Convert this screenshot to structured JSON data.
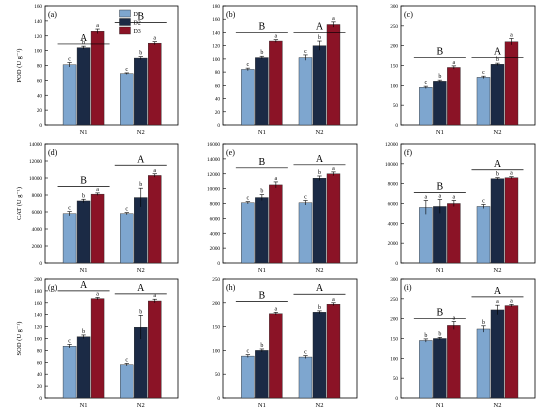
{
  "colors": {
    "D1": "#7ea6cf",
    "D2": "#1b2a45",
    "D3": "#8b1326"
  },
  "chart_data": [
    {
      "panel_label": "(a)",
      "type": "bar",
      "categories": [
        "N1",
        "N2"
      ],
      "ylabel": "POD (U g⁻¹)",
      "ylim": [
        0,
        160
      ],
      "yticks": [
        0,
        20,
        40,
        60,
        80,
        100,
        120,
        140,
        160
      ],
      "legend": [
        "D1",
        "D2",
        "D3"
      ],
      "series": [
        {
          "name": "D1",
          "values": [
            81,
            69
          ],
          "errors": [
            3,
            1
          ],
          "letters": [
            "c",
            "c"
          ]
        },
        {
          "name": "D2",
          "values": [
            104,
            90
          ],
          "errors": [
            2,
            2
          ],
          "letters": [
            "b",
            "b"
          ]
        },
        {
          "name": "D3",
          "values": [
            126,
            110
          ],
          "errors": [
            3,
            2
          ],
          "letters": [
            "a",
            "a"
          ]
        }
      ],
      "group_letters": [
        "A",
        "B"
      ],
      "group_lines": [
        [
          109,
          138
        ],
        [
          138,
          124
        ]
      ]
    },
    {
      "panel_label": "(b)",
      "type": "bar",
      "categories": [
        "N1",
        "N2"
      ],
      "ylabel": "",
      "ylim": [
        0,
        180
      ],
      "yticks": [
        0,
        20,
        40,
        60,
        80,
        100,
        120,
        140,
        160,
        180
      ],
      "series": [
        {
          "name": "D1",
          "values": [
            84,
            102
          ],
          "errors": [
            2,
            4
          ],
          "letters": [
            "c",
            "c"
          ]
        },
        {
          "name": "D2",
          "values": [
            102,
            120
          ],
          "errors": [
            2,
            7
          ],
          "letters": [
            "b",
            "b"
          ]
        },
        {
          "name": "D3",
          "values": [
            127,
            152
          ],
          "errors": [
            2,
            4
          ],
          "letters": [
            "a",
            "a"
          ]
        }
      ],
      "group_letters": [
        "B",
        "A"
      ],
      "group_lines": [
        [
          140,
          158
        ],
        [
          140,
          158
        ]
      ]
    },
    {
      "panel_label": "(c)",
      "type": "bar",
      "categories": [
        "N1",
        "N2"
      ],
      "ylabel": "",
      "ylim": [
        0,
        300
      ],
      "yticks": [
        0,
        50,
        100,
        150,
        200,
        250,
        300
      ],
      "series": [
        {
          "name": "D1",
          "values": [
            95,
            120
          ],
          "errors": [
            3,
            3
          ],
          "letters": [
            "c",
            "c"
          ]
        },
        {
          "name": "D2",
          "values": [
            110,
            153
          ],
          "errors": [
            3,
            3
          ],
          "letters": [
            "b",
            "b"
          ]
        },
        {
          "name": "D3",
          "values": [
            145,
            210
          ],
          "errors": [
            4,
            8
          ],
          "letters": [
            "a",
            "a"
          ]
        }
      ],
      "group_letters": [
        "B",
        "A"
      ],
      "group_lines": [
        [
          170,
          175
        ],
        [
          170,
          265
        ]
      ]
    },
    {
      "panel_label": "(d)",
      "type": "bar",
      "categories": [
        "N1",
        "N2"
      ],
      "ylabel": "CAT (U g⁻¹)",
      "ylim": [
        0,
        14000
      ],
      "yticks": [
        0,
        2000,
        4000,
        6000,
        8000,
        10000,
        12000,
        14000
      ],
      "series": [
        {
          "name": "D1",
          "values": [
            5800,
            5800
          ],
          "errors": [
            250,
            120
          ],
          "letters": [
            "c",
            "c"
          ]
        },
        {
          "name": "D2",
          "values": [
            7300,
            7700
          ],
          "errors": [
            200,
            1100
          ],
          "letters": [
            "b",
            "b"
          ]
        },
        {
          "name": "D3",
          "values": [
            8100,
            10300
          ],
          "errors": [
            150,
            200
          ],
          "letters": [
            "a",
            "a"
          ]
        }
      ],
      "group_letters": [
        "B",
        "A"
      ],
      "group_lines": [
        [
          9000,
          9000
        ],
        [
          11500,
          11500
        ]
      ]
    },
    {
      "panel_label": "(e)",
      "type": "bar",
      "categories": [
        "N1",
        "N2"
      ],
      "ylabel": "",
      "ylim": [
        0,
        16000
      ],
      "yticks": [
        0,
        2000,
        4000,
        6000,
        8000,
        10000,
        12000,
        14000,
        16000
      ],
      "series": [
        {
          "name": "D1",
          "values": [
            8100,
            8100
          ],
          "errors": [
            150,
            300
          ],
          "letters": [
            "c",
            "c"
          ]
        },
        {
          "name": "D2",
          "values": [
            8800,
            11400
          ],
          "errors": [
            400,
            300
          ],
          "letters": [
            "b",
            "b"
          ]
        },
        {
          "name": "D3",
          "values": [
            10500,
            12000
          ],
          "errors": [
            400,
            250
          ],
          "letters": [
            "a",
            "a"
          ]
        }
      ],
      "group_letters": [
        "B",
        "A"
      ],
      "group_lines": [
        [
          12800,
          12800
        ],
        [
          13200,
          13200
        ]
      ]
    },
    {
      "panel_label": "(f)",
      "type": "bar",
      "categories": [
        "N1",
        "N2"
      ],
      "ylabel": "",
      "ylim": [
        0,
        12000
      ],
      "yticks": [
        0,
        2000,
        4000,
        6000,
        8000,
        10000,
        12000
      ],
      "series": [
        {
          "name": "D1",
          "values": [
            5600,
            5700
          ],
          "errors": [
            700,
            200
          ],
          "letters": [
            "a",
            "c"
          ]
        },
        {
          "name": "D2",
          "values": [
            5700,
            8500
          ],
          "errors": [
            700,
            100
          ],
          "letters": [
            "a",
            "b"
          ]
        },
        {
          "name": "D3",
          "values": [
            6000,
            8600
          ],
          "errors": [
            300,
            100
          ],
          "letters": [
            "a",
            "a"
          ]
        }
      ],
      "group_letters": [
        "B",
        "A"
      ],
      "group_lines": [
        [
          7100,
          7100
        ],
        [
          9400,
          9400
        ]
      ]
    },
    {
      "panel_label": "(g)",
      "type": "bar",
      "categories": [
        "N1",
        "N2"
      ],
      "ylabel": "SOD (U g⁻¹)",
      "ylim": [
        0,
        200
      ],
      "yticks": [
        0,
        20,
        40,
        60,
        80,
        100,
        120,
        140,
        160,
        180,
        200
      ],
      "series": [
        {
          "name": "D1",
          "values": [
            87,
            56
          ],
          "errors": [
            3,
            2
          ],
          "letters": [
            "c",
            "c"
          ]
        },
        {
          "name": "D2",
          "values": [
            103,
            119
          ],
          "errors": [
            3,
            20
          ],
          "letters": [
            "b",
            "b"
          ]
        },
        {
          "name": "D3",
          "values": [
            167,
            163
          ],
          "errors": [
            2,
            3
          ],
          "letters": [
            "a",
            "a"
          ]
        }
      ],
      "group_letters": [
        "A",
        "A"
      ],
      "group_lines": [
        [
          180,
          180
        ],
        [
          175,
          175
        ]
      ]
    },
    {
      "panel_label": "(h)",
      "type": "bar",
      "categories": [
        "N1",
        "N2"
      ],
      "ylabel": "",
      "ylim": [
        0,
        250
      ],
      "yticks": [
        0,
        50,
        100,
        150,
        200,
        250
      ],
      "series": [
        {
          "name": "D1",
          "values": [
            88,
            86
          ],
          "errors": [
            3,
            3
          ],
          "letters": [
            "c",
            "c"
          ]
        },
        {
          "name": "D2",
          "values": [
            100,
            180
          ],
          "errors": [
            3,
            3
          ],
          "letters": [
            "b",
            "b"
          ]
        },
        {
          "name": "D3",
          "values": [
            177,
            197
          ],
          "errors": [
            3,
            3
          ],
          "letters": [
            "a",
            "a"
          ]
        }
      ],
      "group_letters": [
        "B",
        "A"
      ],
      "group_lines": [
        [
          203,
          203
        ],
        [
          218,
          218
        ]
      ]
    },
    {
      "panel_label": "(i)",
      "type": "bar",
      "categories": [
        "N1",
        "N2"
      ],
      "ylabel": "",
      "ylim": [
        0,
        300
      ],
      "yticks": [
        0,
        50,
        100,
        150,
        200,
        250,
        300
      ],
      "series": [
        {
          "name": "D1",
          "values": [
            145,
            174
          ],
          "errors": [
            4,
            8
          ],
          "letters": [
            "b",
            "b"
          ]
        },
        {
          "name": "D2",
          "values": [
            150,
            222
          ],
          "errors": [
            3,
            12
          ],
          "letters": [
            "b",
            "a"
          ]
        },
        {
          "name": "D3",
          "values": [
            183,
            233
          ],
          "errors": [
            10,
            3
          ],
          "letters": [
            "a",
            "a"
          ]
        }
      ],
      "group_letters": [
        "B",
        "A"
      ],
      "group_lines": [
        [
          200,
          200
        ],
        [
          255,
          255
        ]
      ]
    }
  ]
}
